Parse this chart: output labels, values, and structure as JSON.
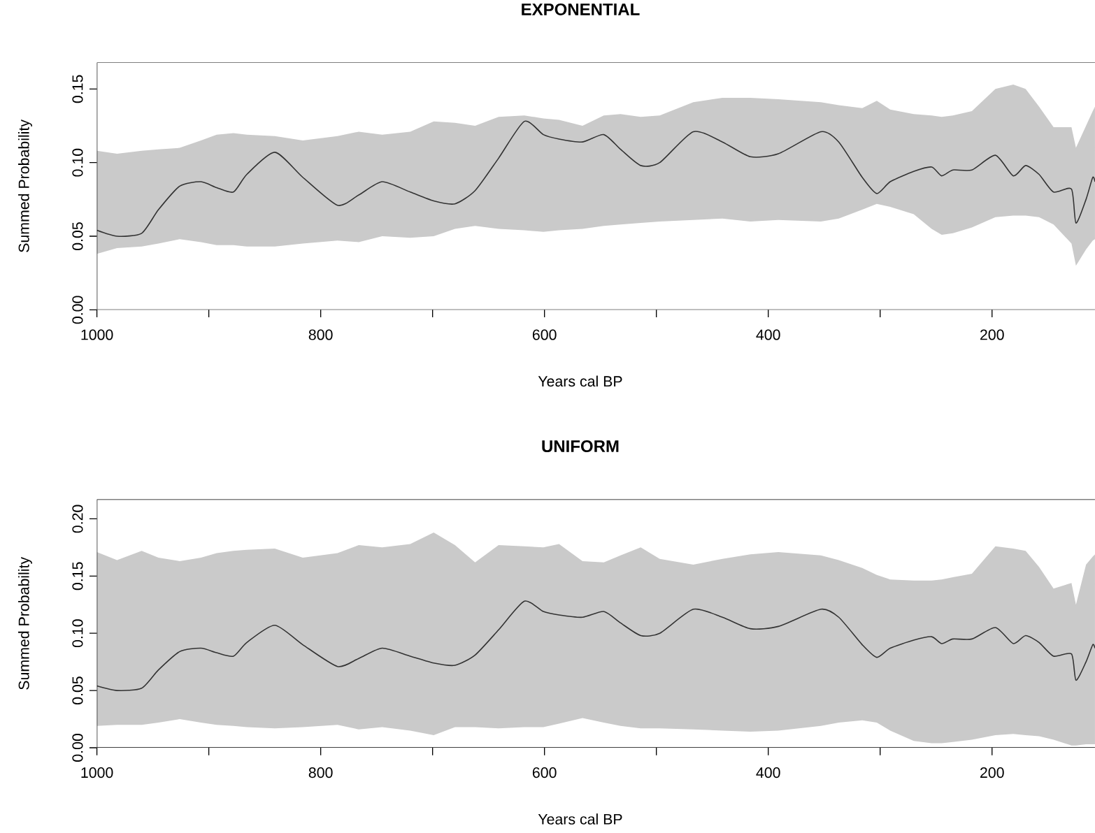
{
  "chart_data": [
    {
      "type": "line",
      "title": "EXPONENTIAL",
      "xlabel": "Years cal BP",
      "ylabel": "Summed Probability",
      "xlim": [
        1000,
        108
      ],
      "ylim": [
        0,
        0.168
      ],
      "xticks": [
        1000,
        {
          "value": 900,
          "label": null
        },
        800,
        {
          "value": 700,
          "label": null
        },
        600,
        {
          "value": 500,
          "label": null
        },
        400,
        {
          "value": 300,
          "label": null
        },
        200
      ],
      "yticks": [
        {
          "value": 0,
          "label": "0.00"
        },
        {
          "value": 0.05,
          "label": "0.05"
        },
        {
          "value": 0.1,
          "label": "0.10"
        },
        {
          "value": 0.15,
          "label": "0.15"
        }
      ],
      "series": [
        {
          "color": "#333333",
          "x": [
            1000,
            982,
            960,
            945,
            926,
            907,
            893,
            878,
            866,
            841,
            816,
            785,
            766,
            745,
            720,
            699,
            680,
            662,
            641,
            618,
            601,
            587,
            566,
            547,
            532,
            514,
            497,
            467,
            441,
            416,
            391,
            353,
            337,
            316,
            303,
            291,
            270,
            254,
            245,
            235,
            218,
            197,
            181,
            170,
            158,
            145,
            129,
            125,
            116,
            110,
            108
          ],
          "values": [
            0.054,
            0.05,
            0.052,
            0.068,
            0.084,
            0.087,
            0.083,
            0.08,
            0.092,
            0.107,
            0.09,
            0.071,
            0.078,
            0.087,
            0.08,
            0.074,
            0.072,
            0.081,
            0.103,
            0.128,
            0.119,
            0.116,
            0.114,
            0.119,
            0.109,
            0.098,
            0.1,
            0.121,
            0.114,
            0.104,
            0.106,
            0.121,
            0.114,
            0.09,
            0.079,
            0.087,
            0.094,
            0.097,
            0.091,
            0.095,
            0.095,
            0.105,
            0.091,
            0.098,
            0.092,
            0.08,
            0.082,
            0.059,
            0.075,
            0.09,
            0.087
          ],
          "upper": [
            0.108,
            0.106,
            0.108,
            0.109,
            0.11,
            0.115,
            0.119,
            0.12,
            0.119,
            0.118,
            0.115,
            0.118,
            0.121,
            0.119,
            0.121,
            0.128,
            0.127,
            0.125,
            0.131,
            0.132,
            0.13,
            0.129,
            0.125,
            0.132,
            0.133,
            0.131,
            0.132,
            0.141,
            0.144,
            0.144,
            0.143,
            0.141,
            0.139,
            0.137,
            0.142,
            0.136,
            0.133,
            0.132,
            0.131,
            0.132,
            0.135,
            0.15,
            0.153,
            0.15,
            0.138,
            0.124,
            0.124,
            0.11,
            0.125,
            0.135,
            0.138
          ],
          "lower": [
            0.038,
            0.042,
            0.043,
            0.045,
            0.048,
            0.046,
            0.044,
            0.044,
            0.043,
            0.043,
            0.045,
            0.047,
            0.046,
            0.05,
            0.049,
            0.05,
            0.055,
            0.057,
            0.055,
            0.054,
            0.053,
            0.054,
            0.055,
            0.057,
            0.058,
            0.059,
            0.06,
            0.061,
            0.062,
            0.06,
            0.061,
            0.06,
            0.062,
            0.068,
            0.072,
            0.07,
            0.065,
            0.055,
            0.051,
            0.052,
            0.056,
            0.063,
            0.064,
            0.064,
            0.063,
            0.058,
            0.045,
            0.03,
            0.041,
            0.047,
            0.048
          ]
        }
      ]
    },
    {
      "type": "line",
      "title": "UNIFORM",
      "xlabel": "Years cal BP",
      "ylabel": "Summed Probability",
      "xlim": [
        1000,
        108
      ],
      "ylim": [
        0,
        0.217
      ],
      "xticks": [
        1000,
        {
          "value": 900,
          "label": null
        },
        800,
        {
          "value": 700,
          "label": null
        },
        600,
        {
          "value": 500,
          "label": null
        },
        400,
        {
          "value": 300,
          "label": null
        },
        200
      ],
      "yticks": [
        {
          "value": 0,
          "label": "0.00"
        },
        {
          "value": 0.05,
          "label": "0.05"
        },
        {
          "value": 0.1,
          "label": "0.10"
        },
        {
          "value": 0.15,
          "label": "0.15"
        },
        {
          "value": 0.2,
          "label": "0.20"
        }
      ],
      "series": [
        {
          "color": "#333333",
          "x": [
            1000,
            982,
            960,
            945,
            926,
            907,
            893,
            878,
            866,
            841,
            816,
            785,
            766,
            745,
            720,
            699,
            680,
            662,
            641,
            618,
            601,
            587,
            566,
            547,
            532,
            514,
            497,
            467,
            441,
            416,
            391,
            353,
            337,
            316,
            303,
            291,
            270,
            254,
            245,
            235,
            218,
            197,
            181,
            170,
            158,
            145,
            129,
            125,
            116,
            110,
            108
          ],
          "values": [
            0.054,
            0.05,
            0.052,
            0.068,
            0.084,
            0.087,
            0.083,
            0.08,
            0.092,
            0.107,
            0.09,
            0.071,
            0.078,
            0.087,
            0.08,
            0.074,
            0.072,
            0.081,
            0.103,
            0.128,
            0.119,
            0.116,
            0.114,
            0.119,
            0.109,
            0.098,
            0.1,
            0.121,
            0.114,
            0.104,
            0.106,
            0.121,
            0.114,
            0.09,
            0.079,
            0.087,
            0.094,
            0.097,
            0.091,
            0.095,
            0.095,
            0.105,
            0.091,
            0.098,
            0.092,
            0.08,
            0.082,
            0.059,
            0.075,
            0.09,
            0.087
          ],
          "upper": [
            0.171,
            0.164,
            0.172,
            0.166,
            0.163,
            0.166,
            0.17,
            0.172,
            0.173,
            0.174,
            0.166,
            0.17,
            0.177,
            0.175,
            0.178,
            0.188,
            0.177,
            0.162,
            0.177,
            0.176,
            0.175,
            0.178,
            0.163,
            0.162,
            0.168,
            0.175,
            0.165,
            0.16,
            0.165,
            0.169,
            0.171,
            0.168,
            0.164,
            0.157,
            0.151,
            0.147,
            0.146,
            0.146,
            0.147,
            0.149,
            0.152,
            0.176,
            0.174,
            0.172,
            0.158,
            0.139,
            0.144,
            0.125,
            0.16,
            0.167,
            0.169
          ],
          "lower": [
            0.019,
            0.02,
            0.02,
            0.022,
            0.025,
            0.022,
            0.02,
            0.019,
            0.018,
            0.017,
            0.018,
            0.02,
            0.016,
            0.018,
            0.015,
            0.011,
            0.018,
            0.018,
            0.017,
            0.018,
            0.018,
            0.021,
            0.026,
            0.022,
            0.019,
            0.017,
            0.017,
            0.016,
            0.015,
            0.014,
            0.015,
            0.019,
            0.022,
            0.024,
            0.022,
            0.015,
            0.006,
            0.004,
            0.004,
            0.005,
            0.007,
            0.011,
            0.012,
            0.011,
            0.01,
            0.007,
            0.002,
            0.002,
            0.003,
            0.003,
            0.003
          ]
        }
      ]
    }
  ]
}
